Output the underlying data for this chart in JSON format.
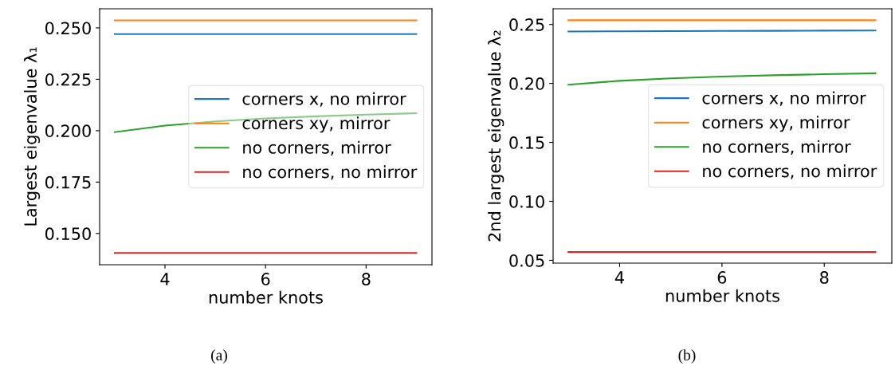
{
  "chart_data": [
    {
      "type": "line",
      "xlabel": "number knots",
      "ylabel": "Largest eigenvalue λ₁",
      "x": [
        3,
        4,
        5,
        6,
        7,
        8,
        9
      ],
      "xlim": [
        2.7,
        9.31
      ],
      "xticks": [
        4,
        6,
        8
      ],
      "ylim": [
        0.1348,
        0.2593
      ],
      "yticks": [
        {
          "value": 0.15,
          "label": "0.150"
        },
        {
          "value": 0.175,
          "label": "0.175"
        },
        {
          "value": 0.2,
          "label": "0.200"
        },
        {
          "value": 0.225,
          "label": "0.225"
        },
        {
          "value": 0.25,
          "label": "0.250"
        }
      ],
      "legend": "center right",
      "grid": false,
      "annotations": [
        "(a)"
      ],
      "series": [
        {
          "name": "corners x, no mirror",
          "color": "#1f77b4",
          "values": [
            0.247,
            0.247,
            0.247,
            0.247,
            0.247,
            0.247,
            0.247
          ]
        },
        {
          "name": "corners xy, mirror",
          "color": "#ff7f0e",
          "values": [
            0.2537,
            0.2537,
            0.2537,
            0.2537,
            0.2537,
            0.2537,
            0.2537
          ]
        },
        {
          "name": "no corners, mirror",
          "color": "#2ca02c",
          "values": [
            0.1993,
            0.2025,
            0.2045,
            0.206,
            0.207,
            0.2078,
            0.2085
          ]
        },
        {
          "name": "no corners, no mirror",
          "color": "#d62728",
          "values": [
            0.1405,
            0.1405,
            0.1405,
            0.1405,
            0.1405,
            0.1405,
            0.1405
          ]
        }
      ]
    },
    {
      "type": "line",
      "xlabel": "number knots",
      "ylabel": "2nd largest eigenvalue λ₂",
      "x": [
        3,
        4,
        5,
        6,
        7,
        8,
        9
      ],
      "xlim": [
        2.7,
        9.32
      ],
      "xticks": [
        4,
        6,
        8
      ],
      "ylim": [
        0.0476,
        0.2633
      ],
      "yticks": [
        {
          "value": 0.05,
          "label": "0.05"
        },
        {
          "value": 0.1,
          "label": "0.10"
        },
        {
          "value": 0.15,
          "label": "0.15"
        },
        {
          "value": 0.2,
          "label": "0.20"
        },
        {
          "value": 0.25,
          "label": "0.25"
        }
      ],
      "legend": "center right",
      "grid": false,
      "annotations": [
        "(b)"
      ],
      "series": [
        {
          "name": "corners x, no mirror",
          "color": "#1f77b4",
          "values": [
            0.244,
            0.2442,
            0.2444,
            0.2445,
            0.2446,
            0.2448,
            0.2449
          ]
        },
        {
          "name": "corners xy, mirror",
          "color": "#ff7f0e",
          "values": [
            0.2536,
            0.2536,
            0.2536,
            0.2536,
            0.2536,
            0.2536,
            0.2536
          ]
        },
        {
          "name": "no corners, mirror",
          "color": "#2ca02c",
          "values": [
            0.1989,
            0.2022,
            0.2043,
            0.2058,
            0.2069,
            0.2078,
            0.2086
          ]
        },
        {
          "name": "no corners, no mirror",
          "color": "#d62728",
          "values": [
            0.057,
            0.057,
            0.057,
            0.057,
            0.057,
            0.057,
            0.057
          ]
        }
      ]
    }
  ]
}
